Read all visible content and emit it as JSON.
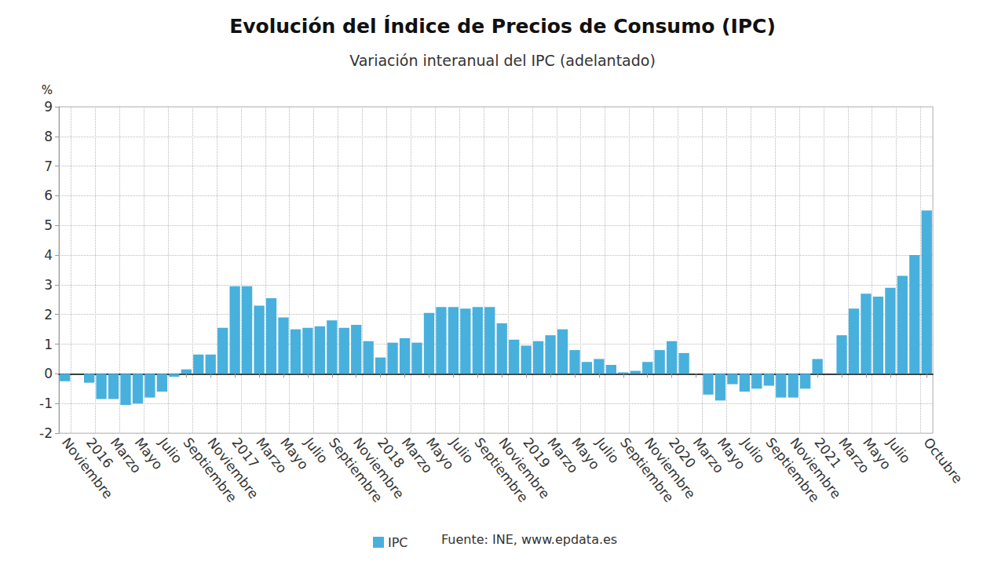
{
  "chart_data": {
    "type": "bar",
    "title": "Evolución del Índice de Precios de Consumo (IPC)",
    "subtitle": "Variación interanual del IPC (adelantado)",
    "y_label": "%",
    "source": "Fuente: INE, www.epdata.es",
    "categories": [
      "Noviembre",
      null,
      "2016",
      null,
      "Marzo",
      null,
      "Mayo",
      null,
      "Julio",
      null,
      "Septiembre",
      null,
      "Noviembre",
      null,
      "2017",
      null,
      "Marzo",
      null,
      "Mayo",
      null,
      "Julio",
      null,
      "Septiembre",
      null,
      "Noviembre",
      null,
      "2018",
      null,
      "Marzo",
      null,
      "Mayo",
      null,
      "Julio",
      null,
      "Septiembre",
      null,
      "Noviembre",
      null,
      "2019",
      null,
      "Marzo",
      null,
      "Mayo",
      null,
      "Julio",
      null,
      "Septiembre",
      null,
      "Noviembre",
      null,
      "2020",
      null,
      "Marzo",
      null,
      "Mayo",
      null,
      "Julio",
      null,
      "Septiembre",
      null,
      "Noviembre",
      null,
      "2021",
      null,
      "Marzo",
      null,
      "Mayo",
      null,
      "Julio",
      null,
      null,
      "Octubre"
    ],
    "series": [
      {
        "name": "IPC",
        "color": "#48b0dc",
        "values": [
          -0.25,
          0.0,
          -0.3,
          -0.85,
          -0.85,
          -1.05,
          -1.0,
          -0.8,
          -0.6,
          -0.1,
          0.15,
          0.65,
          0.65,
          1.55,
          2.95,
          2.95,
          2.3,
          2.55,
          1.9,
          1.5,
          1.55,
          1.6,
          1.8,
          1.55,
          1.65,
          1.1,
          0.55,
          1.05,
          1.2,
          1.05,
          2.05,
          2.25,
          2.25,
          2.2,
          2.25,
          2.25,
          1.7,
          1.15,
          0.95,
          1.1,
          1.3,
          1.5,
          0.8,
          0.4,
          0.5,
          0.3,
          0.05,
          0.1,
          0.4,
          0.8,
          1.1,
          0.7,
          0.0,
          -0.7,
          -0.9,
          -0.35,
          -0.6,
          -0.5,
          -0.4,
          -0.8,
          -0.8,
          -0.5,
          0.5,
          0.0,
          1.3,
          2.2,
          2.7,
          2.6,
          2.9,
          3.3,
          4.0,
          5.5
        ]
      }
    ],
    "ylim": [
      -2,
      9
    ],
    "yticks": [
      -2,
      -1,
      0,
      1,
      2,
      3,
      4,
      5,
      6,
      7,
      8,
      9
    ],
    "grid": true,
    "legend": "bottom"
  }
}
